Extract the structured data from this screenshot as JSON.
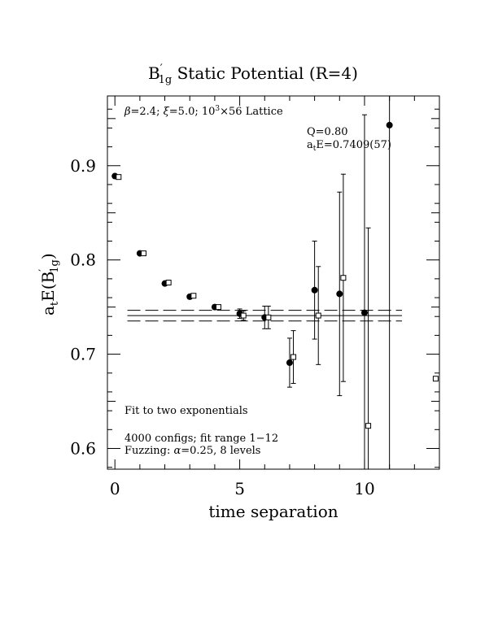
{
  "chart_data": {
    "type": "scatter",
    "title_main": "B",
    "title_prime": "′",
    "title_sub": "1g",
    "title_rest": " Static Potential (R=4)",
    "ylabel_main": "a",
    "ylabel_t": "t",
    "ylabel_mid": "E(B",
    "ylabel_prime": "′",
    "ylabel_sub": "1g",
    "ylabel_end": ")",
    "xlabel": "time separation",
    "xlim": [
      -0.3,
      13.0
    ],
    "ylim": [
      0.578,
      0.974
    ],
    "x_ticks": [
      0,
      5,
      10
    ],
    "y_ticks": [
      0.6,
      0.7,
      0.8,
      0.9
    ],
    "x_tick_labels": [
      "0",
      "5",
      "10"
    ],
    "y_tick_labels": [
      "0.6",
      "0.7",
      "0.8",
      "0.9"
    ],
    "annotations": {
      "lattice_beta": "β",
      "lattice_a": "=2.4; ",
      "lattice_xi": "ξ",
      "lattice_b": "=5.0; 10",
      "lattice_exp": "3",
      "lattice_c": "×56 Lattice",
      "q_value": "Q=0.80",
      "energy_a": "a",
      "energy_t": "t",
      "energy_b": "E=0.7409(57)",
      "fit_text": "Fit to two exponentials",
      "configs_text": "4000 configs; fit range 1−12",
      "fuzz_a": "Fuzzing: ",
      "fuzz_alpha": "α",
      "fuzz_b": "=0.25, 8 levels"
    },
    "fit": {
      "value": 0.7409,
      "error": 0.0057,
      "x_range": [
        0.5,
        11.5
      ]
    },
    "series": [
      {
        "marker": "filled-circle",
        "x": [
          0,
          1,
          2,
          3,
          4,
          5,
          6,
          7,
          8,
          9,
          10,
          11
        ],
        "y": [
          0.889,
          0.807,
          0.775,
          0.761,
          0.75,
          0.743,
          0.739,
          0.691,
          0.768,
          0.764,
          0.744,
          0.943
        ],
        "err": [
          0.0,
          0.0,
          0.0,
          0.0,
          0.002,
          0.005,
          0.012,
          0.026,
          0.052,
          0.108,
          0.21,
          0.365
        ]
      },
      {
        "marker": "open-square",
        "x": [
          0.15,
          1.15,
          2.15,
          3.15,
          4.15,
          5.15,
          6.15,
          7.15,
          8.15,
          9.15,
          10.15,
          12.85
        ],
        "y": [
          0.888,
          0.807,
          0.776,
          0.762,
          0.75,
          0.741,
          0.739,
          0.697,
          0.741,
          0.781,
          0.624,
          0.674
        ],
        "err": [
          0.0,
          0.0,
          0.0,
          0.0,
          0.002,
          0.005,
          0.012,
          0.028,
          0.052,
          0.11,
          0.21,
          0.0
        ]
      }
    ]
  }
}
